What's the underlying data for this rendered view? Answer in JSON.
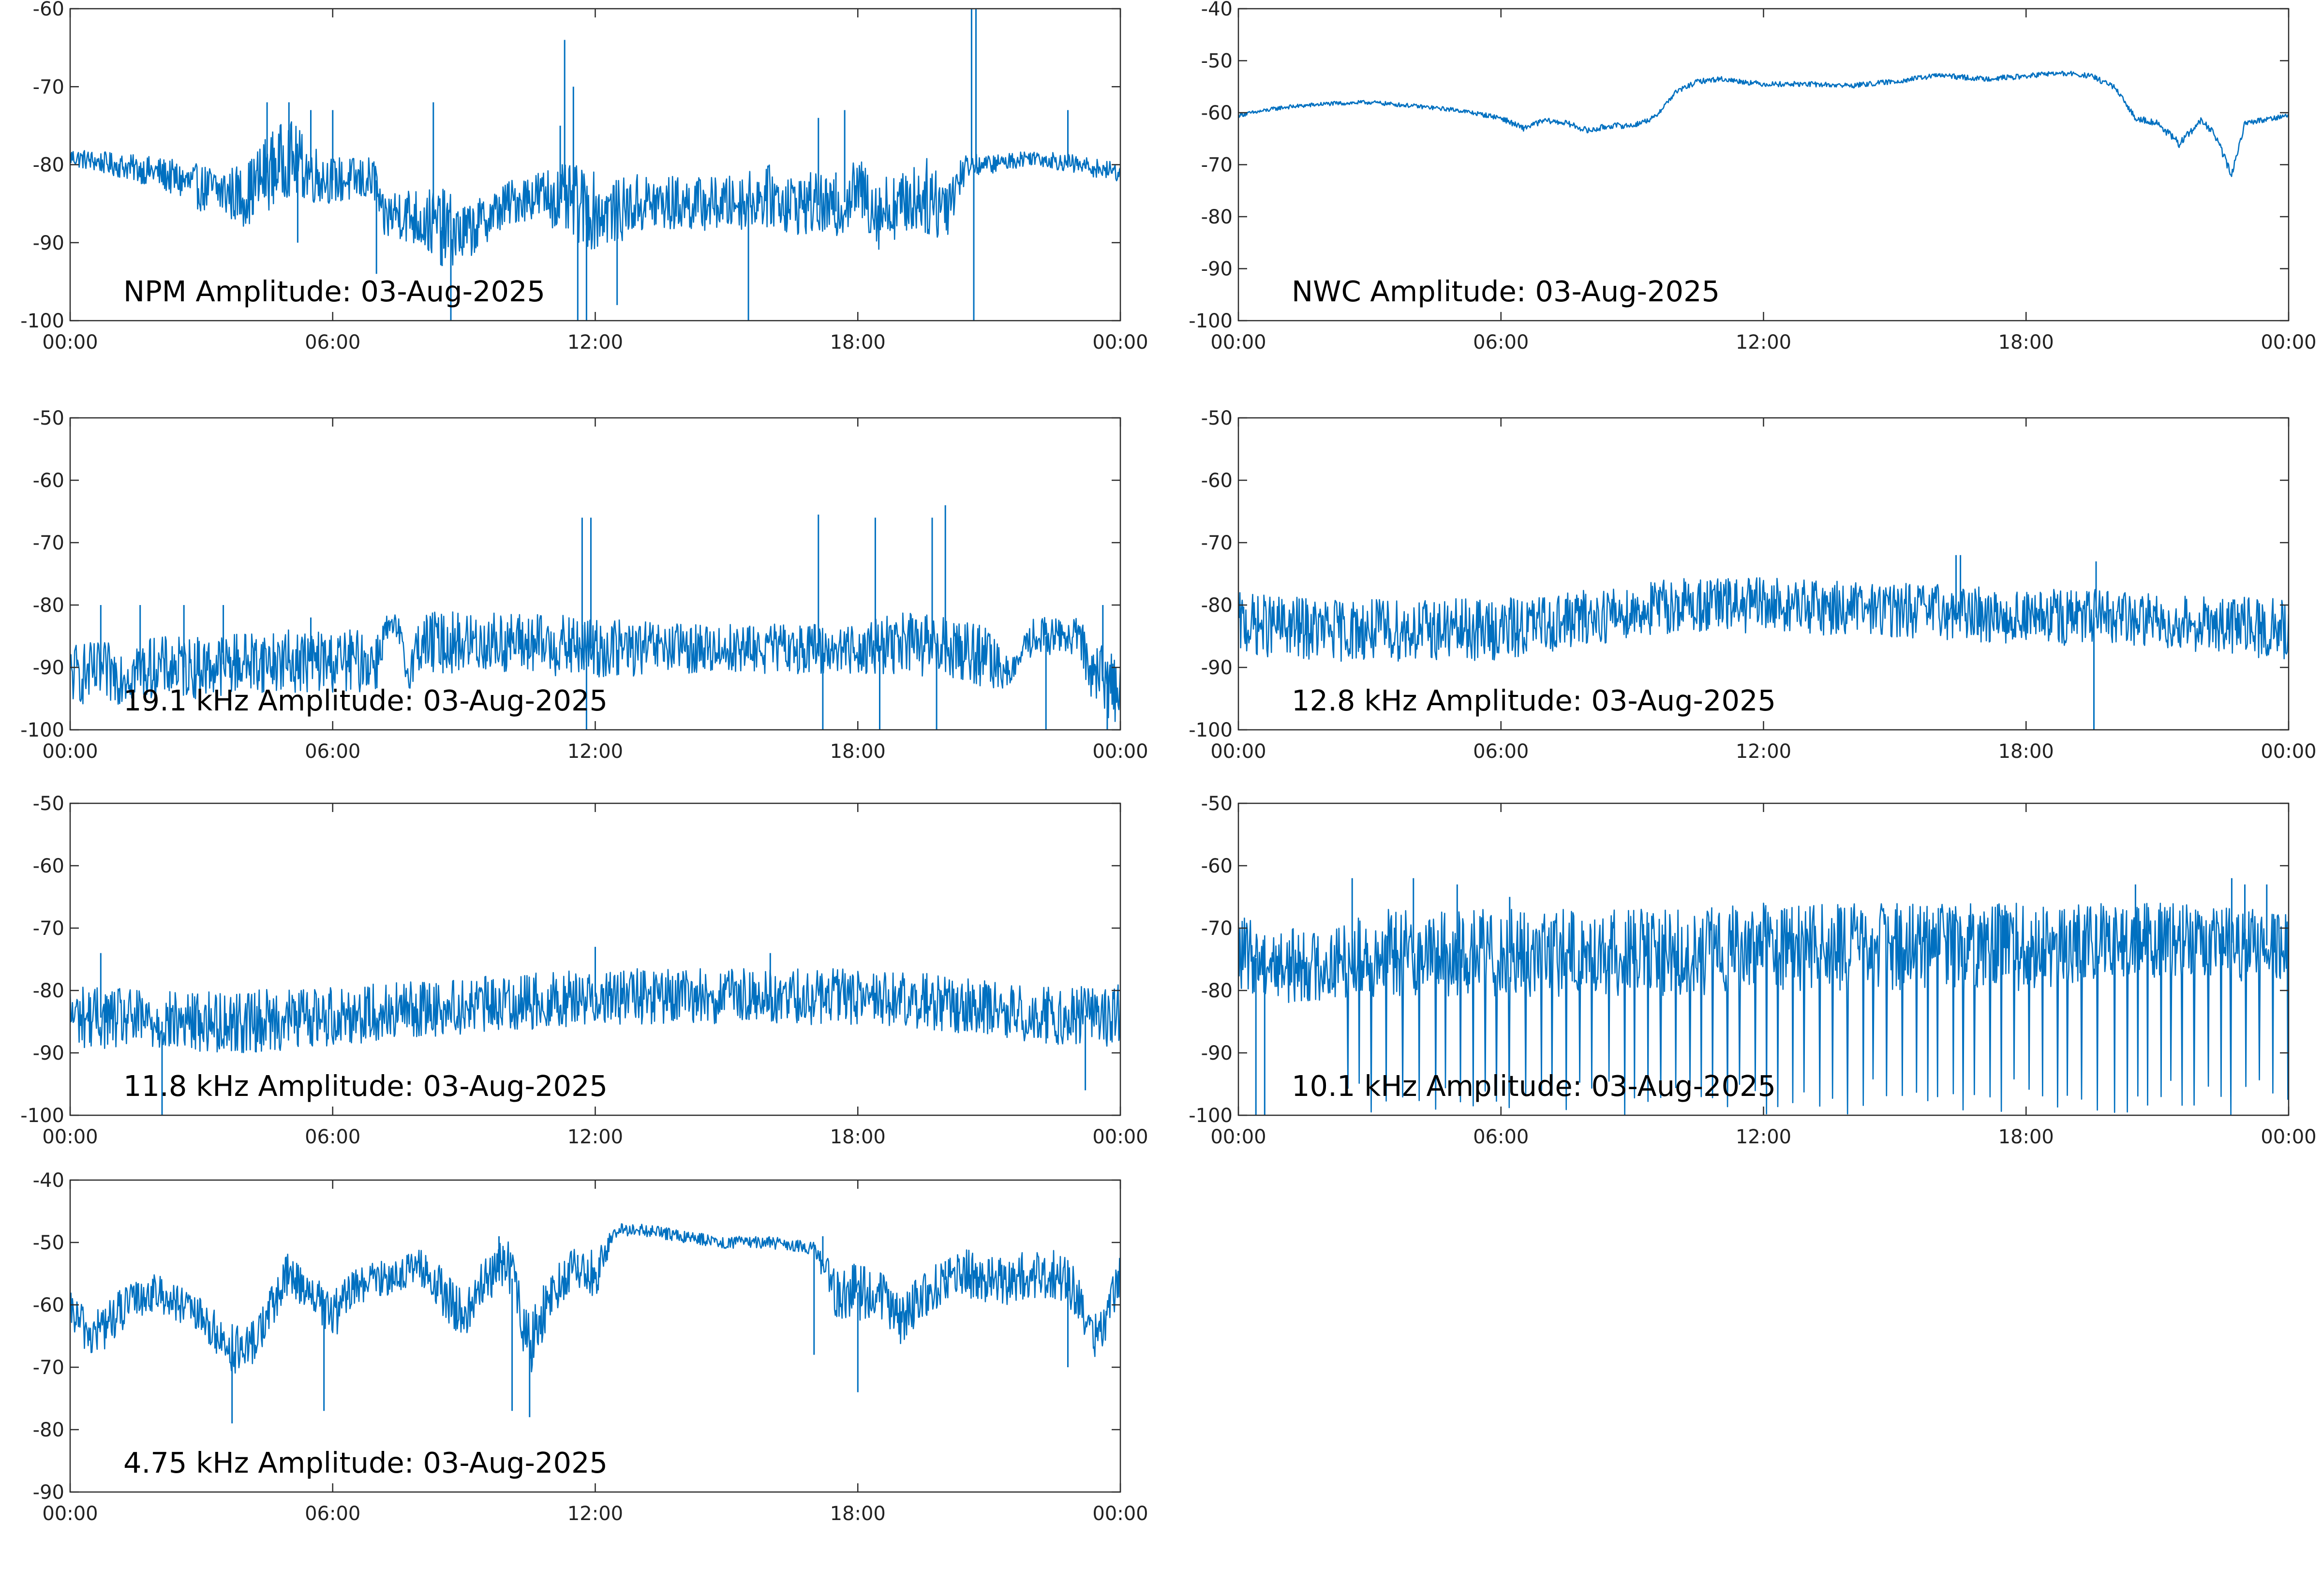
{
  "colors": {
    "trace": "#0070c0",
    "axes": "#2b2b2b",
    "background": "#ffffff"
  },
  "chart_data": [
    {
      "type": "line",
      "id": "npm",
      "title": "NPM Amplitude: 03-Aug-2025",
      "xticks": [
        "00:00",
        "06:00",
        "12:00",
        "18:00",
        "00:00"
      ],
      "ylim": [
        -100,
        -60
      ],
      "yticks": [
        -100,
        -90,
        -80,
        -70,
        -60
      ],
      "grid": false,
      "series": [
        {
          "x_hours": [
            0,
            1,
            2,
            3,
            4,
            4.5,
            5,
            5.5,
            6,
            6.5,
            7,
            7.1,
            7.5,
            8,
            8.5,
            9,
            9.5,
            10,
            10.5,
            11,
            11.5,
            12,
            12.5,
            13,
            14,
            15,
            16,
            16.5,
            17,
            17.5,
            18,
            18.5,
            19,
            19.5,
            20,
            20.5,
            21,
            22,
            23,
            24
          ],
          "center": [
            -79,
            -80,
            -81,
            -83,
            -84,
            -81,
            -79,
            -81,
            -82,
            -82,
            -82,
            -87,
            -86,
            -87,
            -88,
            -89,
            -87,
            -85,
            -84,
            -84,
            -85,
            -86,
            -86,
            -85,
            -85,
            -85,
            -84,
            -85,
            -85,
            -86,
            -83,
            -86,
            -85,
            -84,
            -85,
            -80,
            -80,
            -79,
            -80,
            -81
          ],
          "band": [
            1.2,
            1.5,
            2,
            3,
            4,
            5,
            5,
            4,
            3,
            3,
            3,
            3,
            3.5,
            4,
            5,
            4,
            3,
            3,
            3,
            4,
            5,
            5,
            4,
            4,
            3.5,
            3.5,
            4,
            4,
            4,
            4,
            4,
            5,
            4,
            5,
            5,
            1.5,
            1.2,
            1,
            1.2,
            1.2
          ],
          "spikes": [
            [
              4.5,
              -72
            ],
            [
              5.0,
              -72
            ],
            [
              5.5,
              -73
            ],
            [
              6.0,
              -73
            ],
            [
              5.2,
              -90
            ],
            [
              7.0,
              -94
            ],
            [
              8.5,
              -93
            ],
            [
              8.7,
              -100
            ],
            [
              8.3,
              -72
            ],
            [
              11.3,
              -64
            ],
            [
              11.5,
              -70
            ],
            [
              11.2,
              -75
            ],
            [
              11.6,
              -100
            ],
            [
              11.8,
              -100
            ],
            [
              12.5,
              -98
            ],
            [
              15.5,
              -100
            ],
            [
              16.8,
              -88
            ],
            [
              17.1,
              -74
            ],
            [
              17.5,
              -81
            ],
            [
              17.7,
              -73
            ],
            [
              20.0,
              -83
            ],
            [
              20.6,
              -60
            ],
            [
              20.7,
              -60
            ],
            [
              20.65,
              -100
            ],
            [
              22.8,
              -73
            ]
          ]
        }
      ]
    },
    {
      "type": "line",
      "id": "nwc",
      "title": "NWC Amplitude: 03-Aug-2025",
      "xticks": [
        "00:00",
        "06:00",
        "12:00",
        "18:00",
        "00:00"
      ],
      "ylim": [
        -100,
        -40
      ],
      "yticks": [
        -100,
        -90,
        -80,
        -70,
        -60,
        -50,
        -40
      ],
      "grid": false,
      "series": [
        {
          "x_hours": [
            0,
            1,
            2,
            3,
            4,
            5,
            6,
            6.5,
            7,
            7.5,
            8,
            8.5,
            9,
            9.5,
            10,
            10.5,
            11,
            12,
            13,
            14,
            15,
            16,
            17,
            18,
            18.5,
            19,
            19.5,
            20,
            20.5,
            21,
            21.5,
            22,
            22.3,
            22.7,
            23,
            24
          ],
          "center": [
            -60.5,
            -59,
            -58.3,
            -58,
            -58.7,
            -59.5,
            -61,
            -63,
            -61.5,
            -62,
            -63.5,
            -62.5,
            -62.5,
            -61,
            -56,
            -54,
            -53.5,
            -54.5,
            -54.5,
            -54.8,
            -54,
            -52.8,
            -53.5,
            -53,
            -52.5,
            -52.5,
            -53,
            -55,
            -61,
            -62,
            -66,
            -61.5,
            -64,
            -72,
            -62,
            -60.5
          ],
          "band": [
            0.4,
            0.4,
            0.4,
            0.4,
            0.4,
            0.4,
            0.5,
            0.6,
            0.5,
            0.5,
            0.6,
            0.6,
            0.5,
            0.5,
            0.5,
            0.5,
            0.5,
            0.5,
            0.5,
            0.5,
            0.5,
            0.5,
            0.5,
            0.5,
            0.5,
            0.5,
            0.5,
            0.6,
            0.6,
            0.6,
            0.8,
            0.6,
            0.7,
            0.9,
            0.5,
            0.5
          ],
          "spikes": []
        }
      ]
    },
    {
      "type": "line",
      "id": "f19",
      "title": "19.1 kHz Amplitude: 03-Aug-2025",
      "xticks": [
        "00:00",
        "06:00",
        "12:00",
        "18:00",
        "00:00"
      ],
      "ylim": [
        -100,
        -50
      ],
      "yticks": [
        -100,
        -90,
        -80,
        -70,
        -60,
        -50
      ],
      "grid": false,
      "series": [
        {
          "x_hours": [
            0,
            1,
            2,
            3,
            4,
            5,
            6,
            7,
            7.2,
            7.5,
            7.7,
            8,
            8.5,
            10,
            12,
            14,
            16,
            17,
            18,
            19,
            20,
            20.5,
            21,
            21.5,
            22,
            22.5,
            23,
            23.5,
            24
          ],
          "center": [
            -91,
            -91,
            -90,
            -90,
            -89,
            -89,
            -89,
            -89,
            -84,
            -84,
            -91,
            -86,
            -86,
            -86,
            -87,
            -87,
            -87,
            -87,
            -87,
            -86,
            -87,
            -87,
            -89,
            -91,
            -85,
            -85,
            -85,
            -92,
            -93
          ],
          "band": [
            5,
            5,
            5,
            5,
            5,
            5,
            5,
            5,
            2.5,
            2.5,
            3,
            5,
            5,
            5,
            5,
            4,
            4,
            4,
            4,
            5,
            5,
            5,
            5,
            2,
            3,
            3,
            3,
            6,
            6
          ],
          "spikes": [
            [
              0.7,
              -80
            ],
            [
              1.6,
              -80
            ],
            [
              2.6,
              -80
            ],
            [
              3.5,
              -80
            ],
            [
              5.5,
              -82
            ],
            [
              11.7,
              -66
            ],
            [
              11.9,
              -66
            ],
            [
              11.8,
              -100
            ],
            [
              17.1,
              -65.5
            ],
            [
              17.2,
              -100
            ],
            [
              18.4,
              -66
            ],
            [
              18.5,
              -100
            ],
            [
              19.7,
              -66
            ],
            [
              20.0,
              -64
            ],
            [
              19.8,
              -100
            ],
            [
              22.3,
              -100
            ],
            [
              23.6,
              -80
            ],
            [
              23.7,
              -100
            ]
          ]
        }
      ]
    },
    {
      "type": "line",
      "id": "f12",
      "title": "12.8 kHz Amplitude: 03-Aug-2025",
      "xticks": [
        "00:00",
        "06:00",
        "12:00",
        "18:00",
        "00:00"
      ],
      "ylim": [
        -100,
        -50
      ],
      "yticks": [
        -100,
        -90,
        -80,
        -70,
        -60,
        -50
      ],
      "grid": false,
      "series": [
        {
          "x_hours": [
            0,
            2,
            4,
            6,
            8,
            10,
            12,
            14,
            16,
            18,
            20,
            22,
            24
          ],
          "center": [
            -83,
            -84,
            -84,
            -84,
            -82,
            -80,
            -80,
            -80.5,
            -81,
            -82,
            -82,
            -83,
            -84
          ],
          "band": [
            5,
            5,
            5,
            5,
            4.5,
            4.5,
            4.5,
            4.5,
            4.5,
            4.5,
            4.5,
            4.5,
            5
          ],
          "spikes": [
            [
              16.4,
              -72
            ],
            [
              16.5,
              -72
            ],
            [
              19.6,
              -73
            ],
            [
              19.55,
              -100
            ]
          ]
        }
      ]
    },
    {
      "type": "line",
      "id": "f11",
      "title": "11.8 kHz Amplitude: 03-Aug-2025",
      "xticks": [
        "00:00",
        "06:00",
        "12:00",
        "18:00",
        "00:00"
      ],
      "ylim": [
        -100,
        -50
      ],
      "yticks": [
        -100,
        -90,
        -80,
        -70,
        -60,
        -50
      ],
      "grid": false,
      "series": [
        {
          "x_hours": [
            0,
            2,
            4,
            6,
            8,
            10,
            12,
            14,
            16,
            18,
            20,
            22,
            24
          ],
          "center": [
            -84,
            -85,
            -85,
            -84,
            -83,
            -82,
            -81,
            -81,
            -81,
            -81,
            -82,
            -84,
            -84
          ],
          "band": [
            5,
            5,
            5,
            5,
            4.5,
            4.5,
            4.5,
            4.5,
            4.5,
            4.5,
            4.5,
            4.5,
            5
          ],
          "spikes": [
            [
              0.7,
              -74
            ],
            [
              2.1,
              -100
            ],
            [
              12.0,
              -73
            ],
            [
              16.0,
              -74
            ],
            [
              23.2,
              -96
            ]
          ]
        }
      ]
    },
    {
      "type": "line",
      "id": "f10",
      "title": "10.1 kHz Amplitude: 03-Aug-2025",
      "xticks": [
        "00:00",
        "06:00",
        "12:00",
        "18:00",
        "00:00"
      ],
      "ylim": [
        -100,
        -50
      ],
      "yticks": [
        -100,
        -90,
        -80,
        -70,
        -60,
        -50
      ],
      "grid": false,
      "series": [
        {
          "x_hours": [
            0,
            1,
            2,
            3,
            4,
            5,
            6,
            8,
            10,
            12,
            14,
            16,
            18,
            20,
            22,
            24
          ],
          "center": [
            -74,
            -76,
            -76,
            -74,
            -74,
            -74,
            -74,
            -74,
            -74,
            -73,
            -73,
            -73,
            -73,
            -72,
            -72,
            -73
          ],
          "band": [
            6,
            6,
            6,
            7,
            7,
            7,
            7,
            7,
            7,
            7,
            7,
            7,
            7,
            6,
            6,
            6
          ],
          "drop_every_hours": 0.3,
          "drop_from_hours": 2.5,
          "spikes": [
            [
              0.4,
              -100
            ],
            [
              0.6,
              -100
            ],
            [
              2.6,
              -62
            ],
            [
              4.0,
              -62
            ],
            [
              5.0,
              -63
            ],
            [
              6.2,
              -65
            ],
            [
              20.5,
              -63
            ],
            [
              22.7,
              -62
            ],
            [
              23.0,
              -63
            ],
            [
              23.5,
              -63
            ],
            [
              24.0,
              -95
            ]
          ]
        }
      ]
    },
    {
      "type": "line",
      "id": "f4",
      "title": "4.75 kHz Amplitude: 03-Aug-2025",
      "xticks": [
        "00:00",
        "06:00",
        "12:00",
        "18:00",
        "00:00"
      ],
      "ylim": [
        -90,
        -40
      ],
      "yticks": [
        -90,
        -80,
        -70,
        -60,
        -50,
        -40
      ],
      "grid": false,
      "series": [
        {
          "x_hours": [
            0,
            0.5,
            1,
            1.5,
            2,
            2.5,
            3,
            3.5,
            4,
            4.5,
            5,
            5.5,
            6,
            6.5,
            7,
            7.5,
            8,
            8.5,
            9,
            9.5,
            10,
            10.5,
            11,
            11.5,
            12,
            12.5,
            13,
            14,
            15,
            16,
            17,
            17.5,
            18,
            18.5,
            19,
            19.5,
            20,
            20.5,
            21,
            21.5,
            22,
            22.5,
            23,
            23.5,
            24
          ],
          "center": [
            -61,
            -65,
            -62,
            -59,
            -58,
            -60,
            -62,
            -66,
            -68,
            -62,
            -55,
            -58,
            -62,
            -57,
            -56,
            -55,
            -54,
            -58,
            -62,
            -56,
            -53,
            -67,
            -58,
            -54,
            -55,
            -48,
            -48,
            -49,
            -50,
            -50,
            -51,
            -58,
            -58,
            -58,
            -63,
            -58,
            -56,
            -55,
            -56,
            -56,
            -55,
            -55,
            -58,
            -66,
            -55
          ],
          "band": [
            3,
            4,
            4,
            3,
            3,
            3,
            3,
            4,
            4,
            4,
            4,
            3,
            4,
            3,
            3,
            3,
            3,
            4,
            4,
            4,
            4,
            5,
            4,
            3,
            4,
            1,
            1,
            1,
            1,
            1,
            1,
            4,
            5,
            4,
            4,
            4,
            4,
            4,
            4,
            4,
            4,
            4,
            4,
            4,
            3
          ],
          "spikes": [
            [
              3.7,
              -79
            ],
            [
              5.8,
              -77
            ],
            [
              9.8,
              -49
            ],
            [
              10.1,
              -77
            ],
            [
              10.5,
              -78
            ],
            [
              11.6,
              -52
            ],
            [
              17.2,
              -49
            ],
            [
              17.0,
              -68
            ],
            [
              18.0,
              -74
            ],
            [
              20.0,
              -53
            ],
            [
              22.8,
              -70
            ]
          ]
        }
      ]
    }
  ]
}
